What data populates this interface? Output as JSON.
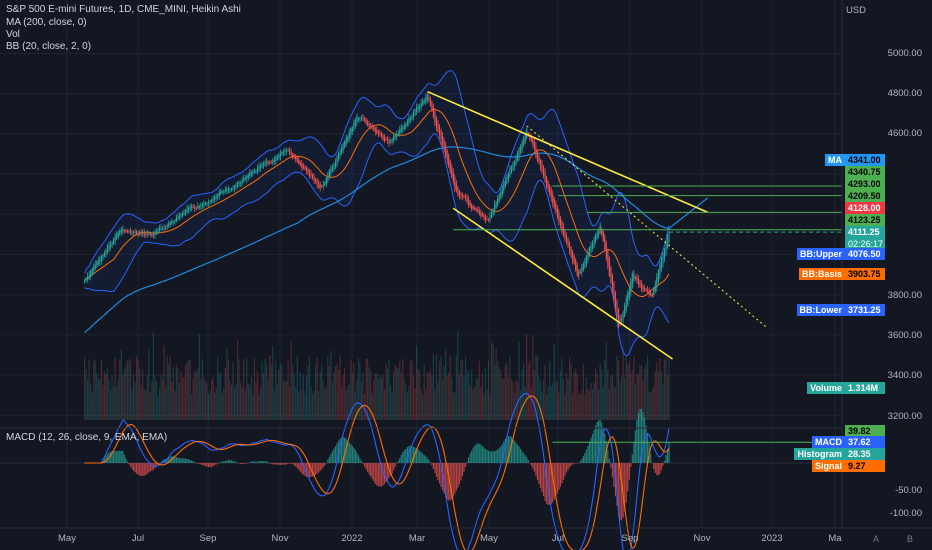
{
  "header": {
    "title": "S&P 500 E-mini Futures, 1D, CME_MINI, Heikin Ashi",
    "indicators": [
      "MA (200, close, 0)",
      "Vol",
      "BB (20, close, 2, 0)"
    ],
    "macd_title": "MACD (12, 26, close, 9, EMA, EMA)"
  },
  "price_axis": {
    "currency": "USD",
    "ticks": [
      "5000.00",
      "4800.00",
      "4600.00",
      "3800.00",
      "3600.00",
      "3400.00",
      "3200.00"
    ]
  },
  "macd_axis": {
    "ticks": [
      "-50.00",
      "-100.00"
    ]
  },
  "time_axis": {
    "labels": [
      "May",
      "Jul",
      "Sep",
      "Nov",
      "2022",
      "Mar",
      "May",
      "Jul",
      "Sep",
      "Nov",
      "2023",
      "Ma"
    ]
  },
  "corner": {
    "auto": "A",
    "log": "B"
  },
  "badges": [
    {
      "label": "MA",
      "value": "4341.00",
      "color": "#2196f3"
    },
    {
      "label": "",
      "value": "4340.75",
      "color": "#4caf50"
    },
    {
      "label": "",
      "value": "4293.00",
      "color": "#4caf50"
    },
    {
      "label": "",
      "value": "4209.50",
      "color": "#4caf50"
    },
    {
      "label": "",
      "value": "4128.00",
      "color": "#f23645"
    },
    {
      "label": "",
      "value": "4123.25",
      "color": "#4caf50"
    },
    {
      "label": "",
      "value": "4111.25",
      "sub": "02:26:17",
      "color": "#26a69a"
    },
    {
      "label": "BB:Upper",
      "value": "4076.50",
      "color": "#2962ff"
    },
    {
      "label": "BB:Basis",
      "value": "3903.75",
      "color": "#ff6d00"
    },
    {
      "label": "BB:Lower",
      "value": "3731.25",
      "color": "#2962ff"
    },
    {
      "label": "Volume",
      "value": "1.314M",
      "color": "#26a69a"
    },
    {
      "label": "",
      "value": "39.82",
      "color": "#4caf50"
    },
    {
      "label": "MACD",
      "value": "37.62",
      "color": "#2962ff"
    },
    {
      "label": "Histogram",
      "value": "28.35",
      "color": "#26a69a"
    },
    {
      "label": "Signal",
      "value": "9.27",
      "color": "#ff6d00"
    }
  ],
  "colors": {
    "background": "#131722",
    "up": "#26a69a",
    "down": "#ef5350",
    "ma": "#2196f3",
    "bb_band": "#2962ff",
    "bb_basis": "#ff6d00",
    "trendline": "#ffeb3b",
    "hline": "#4caf50"
  },
  "chart_data": {
    "type": "candlestick",
    "symbol": "S&P 500 E-mini Futures",
    "interval": "1D",
    "style": "Heikin Ashi",
    "y_range": [
      3180,
      5120
    ],
    "anchors": [
      {
        "date": "2021-03-15",
        "price": 3880
      },
      {
        "date": "2021-04-15",
        "price": 4130
      },
      {
        "date": "2021-05-12",
        "price": 4090
      },
      {
        "date": "2021-06-15",
        "price": 4230
      },
      {
        "date": "2021-07-20",
        "price": 4330
      },
      {
        "date": "2021-08-15",
        "price": 4450
      },
      {
        "date": "2021-09-05",
        "price": 4520
      },
      {
        "date": "2021-10-04",
        "price": 4330
      },
      {
        "date": "2021-11-04",
        "price": 4690
      },
      {
        "date": "2021-12-01",
        "price": 4550
      },
      {
        "date": "2022-01-03",
        "price": 4790
      },
      {
        "date": "2022-01-27",
        "price": 4310
      },
      {
        "date": "2022-02-24",
        "price": 4170
      },
      {
        "date": "2022-03-29",
        "price": 4620
      },
      {
        "date": "2022-05-12",
        "price": 3890
      },
      {
        "date": "2022-05-31",
        "price": 4150
      },
      {
        "date": "2022-06-16",
        "price": 3640
      },
      {
        "date": "2022-06-28",
        "price": 3900
      },
      {
        "date": "2022-07-14",
        "price": 3790
      },
      {
        "date": "2022-07-29",
        "price": 4111.25
      }
    ],
    "moving_average_200": {
      "last": 4341.0
    },
    "bollinger": {
      "upper": 4076.5,
      "basis": 3903.75,
      "lower": 3731.25
    },
    "horizontal_levels": [
      4340.75,
      4293.0,
      4209.5,
      4123.25,
      4111.25
    ],
    "trendlines": [
      {
        "from": {
          "date": "2022-01-03",
          "price": 4810
        },
        "to": {
          "date": "2022-08-31",
          "price": 4210
        }
      },
      {
        "from": {
          "date": "2022-01-25",
          "price": 4230
        },
        "to": {
          "date": "2022-08-01",
          "price": 3480
        }
      },
      {
        "from": {
          "date": "2022-03-29",
          "price": 4640
        },
        "to": {
          "date": "2022-10-20",
          "price": 3640
        }
      }
    ],
    "volume_last": "1.314M",
    "macd": {
      "macd": 37.62,
      "signal": 9.27,
      "histogram": 28.35,
      "level": 39.82
    }
  }
}
